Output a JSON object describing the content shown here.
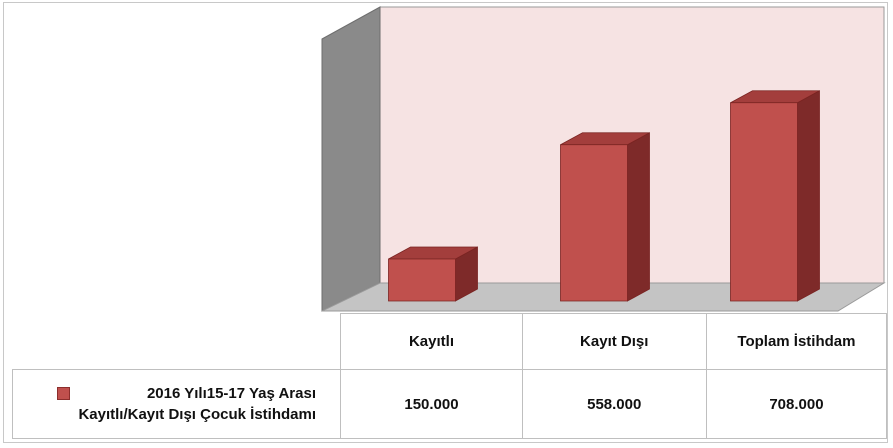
{
  "chart_data": {
    "type": "bar",
    "categories": [
      "Kayıtlı",
      "Kayıt Dışı",
      "Toplam İstihdam"
    ],
    "series": [
      {
        "name": "2016 Yılı15-17 Yaş Arası Kayıtlı/Kayıt Dışı Çocuk İstihdamı",
        "values": [
          150000,
          558000,
          708000
        ],
        "labels": [
          "150.000",
          "558.000",
          "708.000"
        ],
        "color": "#c0504d"
      }
    ],
    "ylim": [
      0,
      850000
    ],
    "grid": false,
    "data_table": true,
    "legend": "in-table-left",
    "colors": {
      "wall": "#f6e3e3",
      "side_wall": "#8c8c8c",
      "floor": "#c4c4c4"
    }
  }
}
